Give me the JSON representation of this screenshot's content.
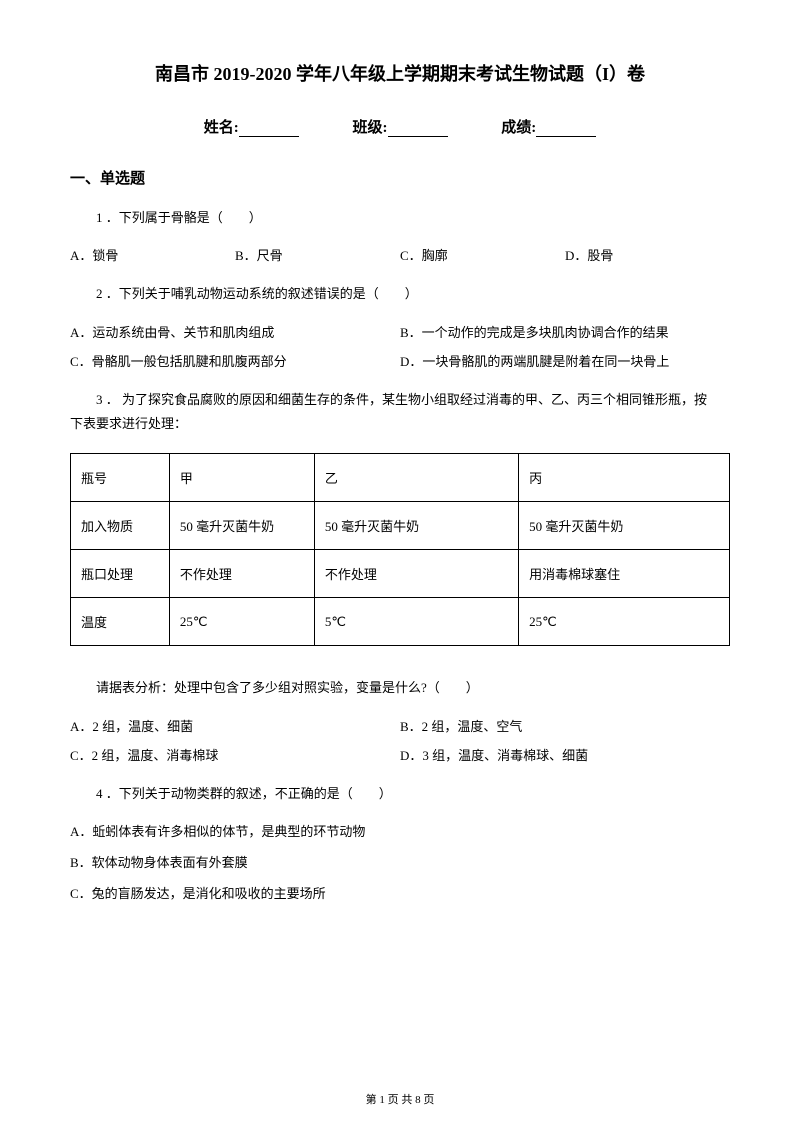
{
  "title": "南昌市 2019-2020 学年八年级上学期期末考试生物试题（I）卷",
  "info": {
    "name_label": "姓名:",
    "class_label": "班级:",
    "score_label": "成绩:"
  },
  "section1": "一、单选题",
  "q1": {
    "text": "1 ．下列属于骨骼是（　　）",
    "a": "A．锁骨",
    "b": "B．尺骨",
    "c": "C．胸廓",
    "d": "D．股骨"
  },
  "q2": {
    "text": "2 ．下列关于哺乳动物运动系统的叙述错误的是（　　）",
    "a": "A．运动系统由骨、关节和肌肉组成",
    "b": "B．一个动作的完成是多块肌肉协调合作的结果",
    "c": "C．骨骼肌一般包括肌腱和肌腹两部分",
    "d": "D．一块骨骼肌的两端肌腱是附着在同一块骨上"
  },
  "q3": {
    "line1": "3 ． 为了探究食品腐败的原因和细菌生存的条件，某生物小组取经过消毒的甲、乙、丙三个相同锥形瓶，按",
    "line2": "下表要求进行处理：",
    "analysis": "请据表分析：处理中包含了多少组对照实验，变量是什么?（　　）",
    "a": "A．2 组，温度、细菌",
    "b": "B．2 组，温度、空气",
    "c": "C．2 组，温度、消毒棉球",
    "d": "D．3 组，温度、消毒棉球、细菌"
  },
  "table": {
    "r1c1": "瓶号",
    "r1c2": "甲",
    "r1c3": "乙",
    "r1c4": "丙",
    "r2c1": "加入物质",
    "r2c2": "50 毫升灭菌牛奶",
    "r2c3": "50 毫升灭菌牛奶",
    "r2c4": "50 毫升灭菌牛奶",
    "r3c1": "瓶口处理",
    "r3c2": "不作处理",
    "r3c3": "不作处理",
    "r3c4": "用消毒棉球塞住",
    "r4c1": "温度",
    "r4c2": "25℃",
    "r4c3": "5℃",
    "r4c4": "25℃"
  },
  "q4": {
    "text": "4 ．下列关于动物类群的叙述，不正确的是（　　）",
    "a": "A．蚯蚓体表有许多相似的体节，是典型的环节动物",
    "b": "B．软体动物身体表面有外套膜",
    "c": "C．兔的盲肠发达，是消化和吸收的主要场所"
  },
  "footer": "第 1 页 共 8 页"
}
